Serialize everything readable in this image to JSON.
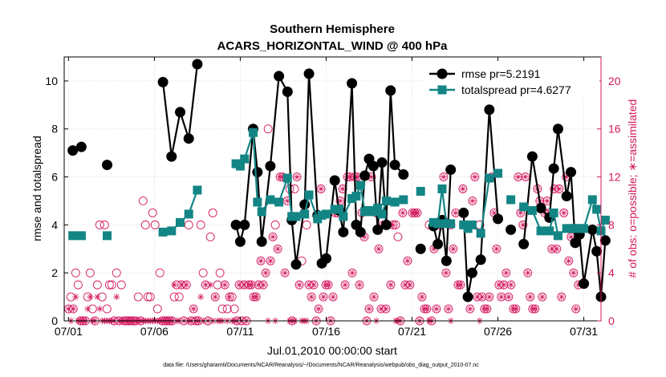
{
  "chart_data": {
    "type": "line",
    "title": "Southern Hemisphere",
    "subtitle": "ACARS_HORIZONTAL_WIND @ 400 hPa",
    "xlabel": "Jul.01,2010 00:00:00 start",
    "ylabel": "rmse and totalspread",
    "ylabel_right": "# of obs: o=possible; ∗=assimilated",
    "footnote": "data file: /Users/gharamti/Documents/NCAR/Reanalysis/~/Documents/NCAR/Reanalysis/webpub/obs_diag_output_2010-07.nc",
    "x_ticks": [
      {
        "v": 1,
        "label": "07/01"
      },
      {
        "v": 6,
        "label": "07/06"
      },
      {
        "v": 11,
        "label": "07/11"
      },
      {
        "v": 16,
        "label": "07/16"
      },
      {
        "v": 21,
        "label": "07/21"
      },
      {
        "v": 26,
        "label": "07/26"
      },
      {
        "v": 31,
        "label": "07/31"
      }
    ],
    "xlim": [
      0.75,
      32
    ],
    "ylim": [
      0,
      11
    ],
    "y_ticks": [
      0,
      2,
      4,
      6,
      8,
      10
    ],
    "ylim_right": [
      0,
      22
    ],
    "y_ticks_right": [
      0,
      4,
      8,
      12,
      16,
      20
    ],
    "colors": {
      "rmse": "#000000",
      "spread": "#138585",
      "obs": "#d4185f",
      "axis": "#000000"
    },
    "legend": {
      "position": "top-right",
      "entries": [
        "rmse pr=5.2191",
        "totalspread pr=4.6277"
      ]
    },
    "series": [
      {
        "name": "rmse pr=5.2191",
        "key": "rmse",
        "points": [
          [
            1.25,
            7.1
          ],
          [
            1.75,
            7.25
          ],
          [
            3.25,
            6.5
          ],
          [
            6.5,
            9.95
          ],
          [
            7.0,
            6.85
          ],
          [
            7.5,
            8.7
          ],
          [
            8.0,
            7.6
          ],
          [
            8.5,
            10.7
          ],
          [
            10.75,
            4.0
          ],
          [
            11.0,
            3.3
          ],
          [
            11.25,
            4.0
          ],
          [
            11.75,
            8.0
          ],
          [
            12.0,
            6.2
          ],
          [
            12.25,
            3.3
          ],
          [
            12.75,
            6.45
          ],
          [
            13.25,
            10.2
          ],
          [
            13.75,
            9.55
          ],
          [
            14.0,
            4.2
          ],
          [
            14.25,
            2.35
          ],
          [
            14.75,
            4.85
          ],
          [
            15.0,
            10.3
          ],
          [
            15.5,
            4.4
          ],
          [
            15.75,
            2.4
          ],
          [
            16.0,
            2.6
          ],
          [
            16.5,
            5.85
          ],
          [
            16.75,
            4.6
          ],
          [
            17.0,
            3.7
          ],
          [
            17.5,
            9.9
          ],
          [
            17.75,
            4.0
          ],
          [
            18.0,
            3.7
          ],
          [
            18.25,
            6.05
          ],
          [
            18.5,
            6.75
          ],
          [
            18.75,
            6.45
          ],
          [
            19.0,
            3.8
          ],
          [
            19.25,
            6.6
          ],
          [
            19.5,
            4.0
          ],
          [
            19.75,
            9.6
          ],
          [
            20.0,
            6.5
          ],
          [
            20.5,
            6.1
          ],
          [
            21.5,
            3.0
          ],
          [
            22.25,
            3.95
          ],
          [
            22.5,
            3.2
          ],
          [
            22.75,
            4.2
          ],
          [
            23.0,
            2.5
          ],
          [
            23.25,
            6.3
          ],
          [
            24.0,
            4.5
          ],
          [
            24.25,
            1.0
          ],
          [
            24.5,
            2.0
          ],
          [
            25.0,
            2.55
          ],
          [
            25.5,
            8.8
          ],
          [
            26.0,
            4.25
          ],
          [
            26.75,
            3.8
          ],
          [
            27.5,
            3.2
          ],
          [
            28.0,
            6.85
          ],
          [
            28.5,
            4.7
          ],
          [
            29.0,
            4.3
          ],
          [
            29.25,
            6.35
          ],
          [
            29.5,
            8.0
          ],
          [
            30.0,
            5.2
          ],
          [
            30.25,
            6.2
          ],
          [
            30.5,
            3.25
          ],
          [
            30.75,
            3.6
          ],
          [
            31.0,
            1.55
          ],
          [
            31.5,
            3.8
          ],
          [
            31.75,
            2.9
          ],
          [
            32.0,
            1.0
          ],
          [
            32.25,
            3.35
          ]
        ]
      },
      {
        "name": "totalspread pr=4.6277",
        "key": "spread",
        "points": [
          [
            1.25,
            3.55
          ],
          [
            1.75,
            3.55
          ],
          [
            3.25,
            3.55
          ],
          [
            6.5,
            3.7
          ],
          [
            7.0,
            3.75
          ],
          [
            7.5,
            4.1
          ],
          [
            8.0,
            4.45
          ],
          [
            8.5,
            5.45
          ],
          [
            10.75,
            6.55
          ],
          [
            11.0,
            6.45
          ],
          [
            11.25,
            6.75
          ],
          [
            11.75,
            7.85
          ],
          [
            12.0,
            4.95
          ],
          [
            12.25,
            4.55
          ],
          [
            12.75,
            5.05
          ],
          [
            13.25,
            4.95
          ],
          [
            13.75,
            5.95
          ],
          [
            14.0,
            4.35
          ],
          [
            14.25,
            4.35
          ],
          [
            14.75,
            4.45
          ],
          [
            15.0,
            5.25
          ],
          [
            15.5,
            4.25
          ],
          [
            15.75,
            4.4
          ],
          [
            16.0,
            4.45
          ],
          [
            16.5,
            4.65
          ],
          [
            16.75,
            4.65
          ],
          [
            17.0,
            4.35
          ],
          [
            17.5,
            5.1
          ],
          [
            17.75,
            5.2
          ],
          [
            18.0,
            5.65
          ],
          [
            18.25,
            4.55
          ],
          [
            18.5,
            4.6
          ],
          [
            18.75,
            4.55
          ],
          [
            19.0,
            4.7
          ],
          [
            19.25,
            4.45
          ],
          [
            19.5,
            5.0
          ],
          [
            20.0,
            4.95
          ],
          [
            20.5,
            5.05
          ],
          [
            21.5,
            5.4
          ],
          [
            22.25,
            4.1
          ],
          [
            22.5,
            4.05
          ],
          [
            22.75,
            5.5
          ],
          [
            23.0,
            4.05
          ],
          [
            23.25,
            4.05
          ],
          [
            24.0,
            4.0
          ],
          [
            24.25,
            3.85
          ],
          [
            24.5,
            4.0
          ],
          [
            25.0,
            3.65
          ],
          [
            25.5,
            5.95
          ],
          [
            26.0,
            6.15
          ],
          [
            26.75,
            5.05
          ],
          [
            27.5,
            4.75
          ],
          [
            28.0,
            4.6
          ],
          [
            28.5,
            3.75
          ],
          [
            29.0,
            3.75
          ],
          [
            29.25,
            4.5
          ],
          [
            29.5,
            3.55
          ],
          [
            30.0,
            3.85
          ],
          [
            30.25,
            3.85
          ],
          [
            30.5,
            3.85
          ],
          [
            30.75,
            3.85
          ],
          [
            31.0,
            3.85
          ],
          [
            31.5,
            5.05
          ],
          [
            31.75,
            4.65
          ],
          [
            32.0,
            3.75
          ],
          [
            32.25,
            4.2
          ]
        ]
      }
    ],
    "obs_possible": [
      1,
      2,
      1,
      4,
      3,
      0,
      0,
      0,
      2,
      4,
      1,
      0,
      3,
      8,
      2,
      8,
      1,
      3,
      3,
      0,
      4,
      0,
      3,
      0,
      0,
      0,
      0,
      0,
      0,
      2,
      0,
      10,
      8,
      2,
      2,
      9,
      8,
      1,
      4,
      0,
      0,
      0,
      0,
      0,
      2,
      3,
      2,
      3,
      0,
      3,
      8,
      0,
      1,
      0,
      0,
      8,
      4,
      3,
      0,
      7,
      9,
      2,
      3,
      4,
      1,
      3,
      1,
      2,
      2,
      1,
      0,
      3,
      0,
      3,
      0,
      3,
      3,
      2,
      2,
      3,
      5,
      3,
      4,
      16,
      5,
      7,
      8,
      6,
      12,
      12,
      4,
      10,
      11,
      0,
      11,
      12,
      3,
      5,
      9,
      8,
      3,
      2,
      3,
      0,
      1,
      11,
      2,
      3,
      3,
      0,
      2,
      9,
      9,
      10,
      11,
      3,
      12,
      12,
      4,
      12,
      12,
      3,
      9,
      7,
      0,
      1,
      12,
      2,
      9,
      6,
      1,
      8,
      1,
      10,
      3,
      8,
      8,
      7,
      0,
      9,
      3,
      5,
      3,
      9,
      9,
      9,
      0,
      2,
      1,
      1,
      8,
      0,
      6,
      1,
      8,
      8,
      12,
      4,
      1,
      8,
      6,
      9,
      3,
      3,
      11,
      8,
      2,
      1,
      10,
      12,
      2,
      8,
      2,
      1,
      1,
      2,
      12,
      9,
      6,
      3,
      2,
      3,
      4,
      2,
      3,
      1,
      1,
      12,
      9,
      8,
      12,
      4,
      2,
      1,
      1,
      11,
      10,
      2,
      9,
      10,
      9,
      6,
      11,
      6,
      11,
      2,
      9,
      12,
      5,
      7,
      4,
      1,
      3
    ],
    "obs_assimilated": [
      1,
      0,
      1,
      2,
      0,
      0,
      0,
      0,
      1,
      2,
      0,
      0,
      2,
      1,
      0,
      0,
      0,
      0,
      0,
      0,
      2,
      0,
      0,
      0,
      0,
      0,
      0,
      0,
      0,
      0,
      0,
      0,
      0,
      0,
      0,
      0,
      0,
      0,
      0,
      0,
      0,
      0,
      0,
      0,
      3,
      0,
      0,
      3,
      0,
      3,
      0,
      0,
      1,
      0,
      0,
      2,
      0,
      3,
      0,
      3,
      0,
      2,
      0,
      0,
      0,
      3,
      0,
      2,
      0,
      0,
      0,
      3,
      0,
      3,
      0,
      3,
      3,
      2,
      2,
      3,
      5,
      3,
      4,
      0,
      5,
      7,
      0,
      6,
      12,
      12,
      4,
      10,
      0,
      0,
      0,
      12,
      3,
      0,
      0,
      0,
      3,
      2,
      3,
      0,
      1,
      11,
      2,
      3,
      3,
      0,
      2,
      9,
      9,
      10,
      11,
      3,
      12,
      12,
      4,
      12,
      12,
      3,
      9,
      7,
      0,
      1,
      12,
      2,
      0,
      6,
      1,
      8,
      1,
      10,
      3,
      8,
      0,
      0,
      0,
      9,
      3,
      5,
      3,
      9,
      9,
      9,
      0,
      2,
      1,
      1,
      0,
      0,
      6,
      1,
      8,
      8,
      12,
      4,
      1,
      0,
      6,
      9,
      3,
      3,
      11,
      8,
      2,
      1,
      10,
      12,
      2,
      0,
      2,
      1,
      1,
      2,
      12,
      9,
      6,
      3,
      2,
      3,
      4,
      2,
      3,
      1,
      1,
      12,
      9,
      8,
      12,
      4,
      2,
      1,
      1,
      11,
      10,
      2,
      9,
      10,
      9,
      6,
      11,
      6,
      11,
      2,
      9,
      12,
      5,
      7,
      4,
      1,
      3
    ]
  }
}
